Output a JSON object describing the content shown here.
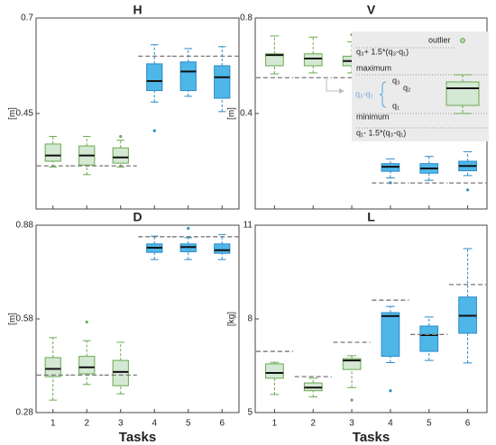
{
  "chart_data": [
    {
      "type": "box",
      "title": "H",
      "ylabel": "[m]",
      "ylim": [
        0.2,
        0.7
      ],
      "yticks": [
        0.45,
        0.7
      ],
      "colors": [
        "green",
        "green",
        "green",
        "blue",
        "blue",
        "blue"
      ],
      "reference": [
        0.313,
        0.313,
        0.313,
        0.6,
        0.6,
        0.6
      ],
      "boxes": [
        {
          "min": 0.31,
          "q1": 0.325,
          "median": 0.34,
          "q3": 0.37,
          "max": 0.39,
          "outliers": []
        },
        {
          "min": 0.29,
          "q1": 0.315,
          "median": 0.34,
          "q3": 0.365,
          "max": 0.39,
          "outliers": []
        },
        {
          "min": 0.31,
          "q1": 0.32,
          "median": 0.335,
          "q3": 0.36,
          "max": 0.38,
          "outliers": [
            0.39
          ]
        },
        {
          "min": 0.48,
          "q1": 0.51,
          "median": 0.535,
          "q3": 0.58,
          "max": 0.63,
          "outliers": [
            0.405
          ]
        },
        {
          "min": 0.495,
          "q1": 0.51,
          "median": 0.56,
          "q3": 0.585,
          "max": 0.62,
          "outliers": []
        },
        {
          "min": 0.455,
          "q1": 0.49,
          "median": 0.545,
          "q3": 0.575,
          "max": 0.625,
          "outliers": []
        }
      ]
    },
    {
      "type": "box",
      "title": "V",
      "ylabel": "[m]",
      "ylim": [
        0,
        0.8
      ],
      "yticks": [
        0.4,
        0.8
      ],
      "colors": [
        "green",
        "green",
        "green",
        "blue",
        "blue",
        "blue"
      ],
      "reference": [
        0.55,
        0.55,
        0.55,
        0.109,
        0.109,
        0.109
      ],
      "boxes": [
        {
          "min": 0.566,
          "q1": 0.6,
          "median": 0.645,
          "q3": 0.65,
          "max": 0.725,
          "outliers": []
        },
        {
          "min": 0.57,
          "q1": 0.6,
          "median": 0.63,
          "q3": 0.65,
          "max": 0.72,
          "outliers": []
        },
        {
          "min": 0.57,
          "q1": 0.6,
          "median": 0.62,
          "q3": 0.64,
          "max": 0.7,
          "outliers": [
            0.73
          ]
        },
        {
          "min": 0.13,
          "q1": 0.158,
          "median": 0.177,
          "q3": 0.19,
          "max": 0.21,
          "outliers": [
            0.11
          ]
        },
        {
          "min": 0.12,
          "q1": 0.15,
          "median": 0.17,
          "q3": 0.19,
          "max": 0.22,
          "outliers": []
        },
        {
          "min": 0.14,
          "q1": 0.16,
          "median": 0.18,
          "q3": 0.2,
          "max": 0.24,
          "outliers": [
            0.08
          ]
        }
      ],
      "key": [
        "outlier",
        "q₃+ 1.5*(q₃-q₁)",
        "maximum",
        "q₃",
        "q₂",
        "q₃-q₁",
        "q₁",
        "minimum",
        "q₁- 1.5*(q₃-q₁)"
      ]
    },
    {
      "type": "box",
      "title": "D",
      "ylabel": "[m]",
      "xlabel": "Tasks",
      "ylim": [
        0.28,
        0.88
      ],
      "yticks": [
        0.28,
        0.58,
        0.88
      ],
      "categories": [
        "1",
        "2",
        "3",
        "4",
        "5",
        "6"
      ],
      "colors": [
        "green",
        "green",
        "green",
        "blue",
        "blue",
        "blue"
      ],
      "reference": [
        0.4,
        0.4,
        0.4,
        0.843,
        0.843,
        0.843
      ],
      "boxes": [
        {
          "min": 0.32,
          "q1": 0.395,
          "median": 0.42,
          "q3": 0.456,
          "max": 0.52,
          "outliers": []
        },
        {
          "min": 0.37,
          "q1": 0.404,
          "median": 0.425,
          "q3": 0.46,
          "max": 0.51,
          "outliers": [
            0.57
          ]
        },
        {
          "min": 0.34,
          "q1": 0.366,
          "median": 0.41,
          "q3": 0.447,
          "max": 0.505,
          "outliers": []
        },
        {
          "min": 0.77,
          "q1": 0.793,
          "median": 0.808,
          "q3": 0.82,
          "max": 0.845,
          "outliers": []
        },
        {
          "min": 0.77,
          "q1": 0.795,
          "median": 0.81,
          "q3": 0.82,
          "max": 0.84,
          "outliers": [
            0.87
          ]
        },
        {
          "min": 0.77,
          "q1": 0.79,
          "median": 0.8,
          "q3": 0.82,
          "max": 0.85,
          "outliers": []
        }
      ]
    },
    {
      "type": "box",
      "title": "L",
      "ylabel": "[kg]",
      "xlabel": "Tasks",
      "ylim": [
        5,
        11
      ],
      "yticks": [
        5,
        8,
        11
      ],
      "categories": [
        "1",
        "2",
        "3",
        "4",
        "5",
        "6"
      ],
      "colors": [
        "green",
        "green",
        "green",
        "blue",
        "blue",
        "blue"
      ],
      "reference": [
        6.96,
        6.15,
        7.25,
        8.6,
        7.5,
        9.1
      ],
      "boxes": [
        {
          "min": 5.58,
          "q1": 6.1,
          "median": 6.27,
          "q3": 6.56,
          "max": 6.61,
          "outliers": []
        },
        {
          "min": 5.5,
          "q1": 5.7,
          "median": 5.8,
          "q3": 5.95,
          "max": 6.1,
          "outliers": []
        },
        {
          "min": 5.8,
          "q1": 6.38,
          "median": 6.67,
          "q3": 6.73,
          "max": 6.82,
          "outliers": [
            5.4
          ]
        },
        {
          "min": 6.6,
          "q1": 6.8,
          "median": 8.09,
          "q3": 8.2,
          "max": 8.4,
          "outliers": [
            5.7
          ]
        },
        {
          "min": 6.67,
          "q1": 6.96,
          "median": 7.48,
          "q3": 7.77,
          "max": 8.06,
          "outliers": []
        },
        {
          "min": 6.59,
          "q1": 7.54,
          "median": 8.1,
          "q3": 8.7,
          "max": 10.25,
          "outliers": []
        }
      ]
    }
  ]
}
